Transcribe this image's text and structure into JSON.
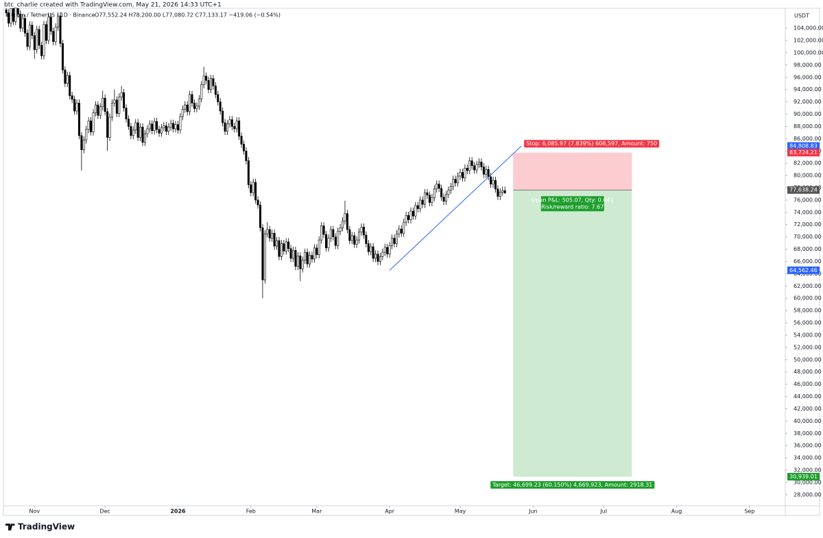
{
  "header": "btc_charlie created with TradingView.com, May 21, 2026 14:33 UTC+1",
  "legend": "Bitcoin / TetherUS · 1D · Binance",
  "ohlc_text": "O77,552.24 H78,200.00 L77,080.72 C77,133.17 −419.06 (−0.54%)",
  "footer": "TradingView",
  "chart_data": {
    "type": "candlestick",
    "currency": "USDT",
    "up_color": "#ffffff",
    "down_color": "#000000",
    "outline_color": "#000000",
    "xlim": [
      -1.2,
      331.2
    ],
    "xticks": [
      {
        "value": 12,
        "label": "Nov"
      },
      {
        "value": 42,
        "label": "Dec"
      },
      {
        "value": 73,
        "label": "2026"
      },
      {
        "value": 104,
        "label": "Feb"
      },
      {
        "value": 132,
        "label": "Mar"
      },
      {
        "value": 163,
        "label": "Apr"
      },
      {
        "value": 193,
        "label": "May"
      },
      {
        "value": 224,
        "label": "Jun"
      },
      {
        "value": 254,
        "label": "Jul"
      },
      {
        "value": 285,
        "label": "Aug"
      },
      {
        "value": 316,
        "label": "Sep"
      }
    ],
    "ylim": [
      26200,
      107250
    ],
    "yticks": [
      {
        "value": 28000,
        "label": "28,000.00"
      },
      {
        "value": 30000,
        "label": "30,000.00"
      },
      {
        "value": 32000,
        "label": "32,000.00"
      },
      {
        "value": 34000,
        "label": "34,000.00"
      },
      {
        "value": 36000,
        "label": "36,000.00"
      },
      {
        "value": 38000,
        "label": "38,000.00"
      },
      {
        "value": 40000,
        "label": "40,000.00"
      },
      {
        "value": 42000,
        "label": "42,000.00"
      },
      {
        "value": 44000,
        "label": "44,000.00"
      },
      {
        "value": 46000,
        "label": "46,000.00"
      },
      {
        "value": 48000,
        "label": "48,000.00"
      },
      {
        "value": 50000,
        "label": "50,000.00"
      },
      {
        "value": 52000,
        "label": "52,000.00"
      },
      {
        "value": 54000,
        "label": "54,000.00"
      },
      {
        "value": 56000,
        "label": "56,000.00"
      },
      {
        "value": 58000,
        "label": "58,000.00"
      },
      {
        "value": 60000,
        "label": "60,000.00"
      },
      {
        "value": 62000,
        "label": "62,000.00"
      },
      {
        "value": 64000,
        "label": "64,000.00"
      },
      {
        "value": 66000,
        "label": "66,000.00"
      },
      {
        "value": 68000,
        "label": "68,000.00"
      },
      {
        "value": 70000,
        "label": "70,000.00"
      },
      {
        "value": 72000,
        "label": "72,000.00"
      },
      {
        "value": 74000,
        "label": "74,000.00"
      },
      {
        "value": 76000,
        "label": "76,000.00"
      },
      {
        "value": 78000,
        "label": "78,000.00"
      },
      {
        "value": 80000,
        "label": "80,000.00"
      },
      {
        "value": 82000,
        "label": "82,000.00"
      },
      {
        "value": 84000,
        "label": "84,000.00"
      },
      {
        "value": 86000,
        "label": "86,000.00"
      },
      {
        "value": 88000,
        "label": "88,000.00"
      },
      {
        "value": 90000,
        "label": "90,000.00"
      },
      {
        "value": 92000,
        "label": "92,000.00"
      },
      {
        "value": 94000,
        "label": "94,000.00"
      },
      {
        "value": 96000,
        "label": "96,000.00"
      },
      {
        "value": 98000,
        "label": "98,000.00"
      },
      {
        "value": 100000,
        "label": "100,000.00"
      },
      {
        "value": 102000,
        "label": "102,000.00"
      },
      {
        "value": 104000,
        "label": "104,000.00"
      }
    ],
    "open": [
      107000,
      106500,
      104800,
      107200,
      105100,
      108000,
      106300,
      104000,
      105600,
      103200,
      101000,
      104500,
      102800,
      100500,
      103800,
      101200,
      99500,
      104600,
      102000,
      105800,
      103500,
      101800,
      104200,
      106000,
      101500,
      97200,
      95000,
      96300,
      93000,
      92400,
      90500,
      91800,
      86500,
      84200,
      85800,
      87500,
      88900,
      87100,
      90200,
      91500,
      89800,
      91200,
      92600,
      90400,
      86200,
      89500,
      91800,
      92300,
      90100,
      92800,
      93500,
      91000,
      89200,
      88000,
      86500,
      87400,
      88600,
      86200,
      87900,
      85400,
      86800,
      87600,
      88400,
      87300,
      88800,
      87500,
      86900,
      87800,
      88100,
      87200,
      87900,
      88500,
      87600,
      88300,
      87400,
      89600,
      90800,
      91500,
      90400,
      93200,
      91800,
      90900,
      91300,
      92500,
      94800,
      96200,
      95500,
      94000,
      95800,
      94600,
      93200,
      92000,
      90500,
      88600,
      87200,
      88400,
      89100,
      88000,
      87600,
      88900,
      86400,
      85100,
      84000,
      82400,
      78500,
      77200,
      78900,
      76000,
      75200,
      71500,
      63000,
      70500,
      71200,
      69800,
      70600,
      68500,
      69400,
      66800,
      68900,
      67700,
      69200,
      68100,
      66500,
      67800,
      65200,
      66900,
      64800,
      66200,
      67500,
      65600,
      67000,
      66400,
      68200,
      67100,
      69500,
      71800,
      70400,
      68200,
      69800,
      71200,
      70000,
      68600,
      70900,
      71500,
      72600,
      73800,
      71200,
      69400,
      70200,
      68800,
      69500,
      70800,
      71600,
      70300,
      68900,
      67600,
      68400,
      66500,
      67200,
      66000,
      66800,
      67500,
      68300,
      67200,
      68600,
      69800,
      68900,
      70500,
      71300,
      70600,
      72400,
      73500,
      72800,
      74200,
      73400,
      75100,
      74600,
      76000,
      75300,
      77200,
      76800,
      75600,
      76400,
      77800,
      78600,
      77900,
      76500,
      75800,
      76900,
      77600,
      78200,
      79400,
      78800,
      79900,
      80500,
      79600,
      81200,
      80800,
      82400,
      81600,
      80900,
      81800,
      82200,
      81400,
      80200,
      81000,
      79800,
      78600,
      79200,
      77800,
      76600,
      77300,
      77552.24
    ],
    "high": [
      107600,
      107100,
      107800,
      107800,
      108600,
      108600,
      106900,
      106200,
      106200,
      103800,
      105100,
      105100,
      103400,
      104400,
      104400,
      101800,
      105200,
      105200,
      106400,
      106400,
      104100,
      104800,
      106600,
      106600,
      102100,
      97800,
      96900,
      96900,
      93600,
      93000,
      92400,
      92400,
      87100,
      86400,
      88100,
      89500,
      89500,
      90800,
      92100,
      92100,
      91800,
      93800,
      93200,
      91000,
      90100,
      92400,
      94000,
      92900,
      93400,
      94600,
      94100,
      91600,
      89800,
      88600,
      88000,
      89200,
      89200,
      88500,
      88500,
      87400,
      88200,
      89000,
      89000,
      89400,
      89400,
      88100,
      88400,
      88700,
      88700,
      88500,
      89100,
      89100,
      88900,
      88900,
      90200,
      91400,
      92100,
      92100,
      93800,
      93800,
      92400,
      91900,
      93100,
      95400,
      97700,
      96800,
      96100,
      96400,
      96400,
      95200,
      93800,
      92600,
      91100,
      89200,
      89000,
      89700,
      89700,
      88600,
      89500,
      89500,
      87000,
      85700,
      84600,
      83000,
      79100,
      79500,
      79500,
      76600,
      75800,
      72100,
      71100,
      72400,
      71800,
      71200,
      71200,
      70000,
      70000,
      69500,
      69500,
      69800,
      69800,
      68700,
      68400,
      68400,
      67500,
      67500,
      66800,
      68100,
      68100,
      67600,
      67600,
      68800,
      68800,
      70100,
      72400,
      72400,
      71000,
      70400,
      71800,
      71800,
      70600,
      71500,
      72100,
      73200,
      75900,
      74400,
      71800,
      70800,
      70800,
      70100,
      71400,
      72200,
      72200,
      70900,
      69500,
      69000,
      69000,
      67800,
      67800,
      67400,
      68100,
      68900,
      68900,
      69200,
      70400,
      70400,
      71100,
      71900,
      71900,
      73000,
      74100,
      74100,
      74800,
      74800,
      75700,
      75700,
      76600,
      76600,
      77800,
      77800,
      77400,
      77000,
      78400,
      79200,
      79200,
      78500,
      77100,
      77500,
      78200,
      78800,
      80000,
      80000,
      80500,
      81100,
      81100,
      81800,
      81800,
      83000,
      83000,
      82200,
      82400,
      82800,
      82800,
      82000,
      81600,
      81600,
      80400,
      79800,
      79800,
      78400,
      77900,
      78200,
      78200.0
    ],
    "low": [
      105900,
      104200,
      104200,
      104500,
      104500,
      105700,
      103400,
      103400,
      102600,
      100400,
      100400,
      102200,
      99000,
      99900,
      100600,
      98900,
      98900,
      101400,
      101400,
      102900,
      101200,
      101200,
      103600,
      100900,
      96600,
      94400,
      94400,
      92400,
      91800,
      89900,
      89900,
      85900,
      80800,
      83600,
      85200,
      86900,
      86500,
      86500,
      89600,
      89200,
      89200,
      90600,
      89800,
      84000,
      85600,
      88900,
      91200,
      89500,
      89500,
      92200,
      90400,
      88600,
      87400,
      85900,
      85900,
      86800,
      85600,
      85600,
      84800,
      84800,
      86200,
      87000,
      86700,
      86700,
      86900,
      86300,
      86300,
      87200,
      86600,
      86600,
      87300,
      87000,
      87000,
      86800,
      86800,
      89000,
      90200,
      89800,
      89800,
      91200,
      90300,
      90300,
      90700,
      91900,
      94200,
      94900,
      93400,
      93400,
      94000,
      92600,
      91400,
      89900,
      88000,
      86600,
      86600,
      87800,
      87400,
      87000,
      87000,
      85800,
      84500,
      83400,
      81800,
      77900,
      76600,
      76600,
      75400,
      74600,
      70900,
      60000,
      62400,
      69900,
      69200,
      69200,
      67900,
      67900,
      66200,
      66200,
      67100,
      67100,
      67500,
      65900,
      65900,
      64600,
      64600,
      62800,
      64200,
      65600,
      65000,
      65000,
      65800,
      65800,
      66500,
      66500,
      68900,
      69800,
      67600,
      67600,
      69200,
      69400,
      68000,
      68000,
      70300,
      70900,
      72000,
      70600,
      68800,
      68800,
      68200,
      68200,
      68900,
      70200,
      69700,
      68300,
      67000,
      67000,
      65900,
      65900,
      65400,
      65400,
      66200,
      66900,
      66600,
      66600,
      68000,
      68300,
      68300,
      69900,
      70000,
      70000,
      71800,
      72200,
      72200,
      72800,
      72800,
      74000,
      74000,
      74700,
      74700,
      76200,
      75000,
      75000,
      75800,
      77200,
      77300,
      75900,
      75200,
      75200,
      76300,
      77000,
      77600,
      78200,
      78200,
      79300,
      79000,
      79000,
      80200,
      80200,
      81000,
      80300,
      80300,
      81200,
      80800,
      79600,
      79600,
      79200,
      78000,
      78000,
      77200,
      76000,
      76000,
      76700,
      77080.72
    ],
    "close": [
      106500,
      104800,
      107200,
      105100,
      108000,
      106300,
      104000,
      105600,
      103200,
      101000,
      104500,
      102800,
      100500,
      103800,
      101200,
      99500,
      104600,
      102000,
      105800,
      103500,
      101800,
      104200,
      106000,
      101500,
      97200,
      95000,
      96300,
      93000,
      92400,
      90500,
      91800,
      86500,
      84200,
      85800,
      87500,
      88900,
      87100,
      90200,
      91500,
      89800,
      91200,
      92600,
      90400,
      86200,
      89500,
      91800,
      92300,
      90100,
      92800,
      93500,
      91000,
      89200,
      88000,
      86500,
      87400,
      88600,
      86200,
      87900,
      85400,
      86800,
      87600,
      88400,
      87300,
      88800,
      87500,
      86900,
      87800,
      88100,
      87200,
      87900,
      88500,
      87600,
      88300,
      87400,
      89600,
      90800,
      91500,
      90400,
      93200,
      91800,
      90900,
      91300,
      92500,
      94800,
      96200,
      95500,
      94000,
      95800,
      94600,
      93200,
      92000,
      90500,
      88600,
      87200,
      88400,
      89100,
      88000,
      87600,
      88900,
      86400,
      85100,
      84000,
      82400,
      78500,
      77200,
      78900,
      76000,
      75200,
      71500,
      63000,
      70500,
      71200,
      69800,
      70600,
      68500,
      69400,
      66800,
      68900,
      67700,
      69200,
      68100,
      66500,
      67800,
      65200,
      66900,
      64800,
      66200,
      67500,
      65600,
      67000,
      66400,
      68200,
      67100,
      69500,
      71800,
      70400,
      68200,
      69800,
      71200,
      70000,
      68600,
      70900,
      71500,
      72600,
      73800,
      71200,
      69400,
      70200,
      68800,
      69500,
      70800,
      71600,
      70300,
      68900,
      67600,
      68400,
      66500,
      67200,
      66000,
      66800,
      67500,
      68300,
      67200,
      68600,
      69800,
      68900,
      70500,
      71300,
      70600,
      72400,
      73500,
      72800,
      74200,
      73400,
      75100,
      74600,
      76000,
      75300,
      77200,
      76800,
      75600,
      76400,
      77800,
      78600,
      77900,
      76500,
      75800,
      76900,
      77600,
      78200,
      79400,
      78800,
      79900,
      80500,
      79600,
      81200,
      80800,
      82400,
      81600,
      80900,
      81800,
      82200,
      81400,
      80200,
      81000,
      79800,
      78600,
      79200,
      77800,
      76600,
      77300,
      77552.24,
      77133.17
    ],
    "trendline": {
      "color": "#2962ff",
      "x": [
        163,
        219
      ],
      "y": [
        {
          "value": 64562.46,
          "label": "64,562.46"
        },
        {
          "value": 84808.83,
          "label": "84,808.83"
        }
      ]
    },
    "position": {
      "x": [
        215.5,
        266
      ],
      "entry": {
        "value": 77638.24,
        "label": "77,638.24"
      },
      "stop": {
        "value": 83724.21,
        "label": "83,724.21"
      },
      "target": {
        "value": 30939.01,
        "label": "30,939.01"
      },
      "stop_color": "#f23645",
      "target_color": "#1e9e2d",
      "entry_color": "#555555",
      "stop_text": "Stop: 6,085.97 (7.839%) 608,597, Amount: 750",
      "pnl_text": "Open P&L: 505.07, Qty: 0.041",
      "rr_text": "Risk/reward ratio: 7.67",
      "target_text": "Target: 46,699.23 (60.150%) 4,669,923, Amount: 2918.31"
    }
  }
}
